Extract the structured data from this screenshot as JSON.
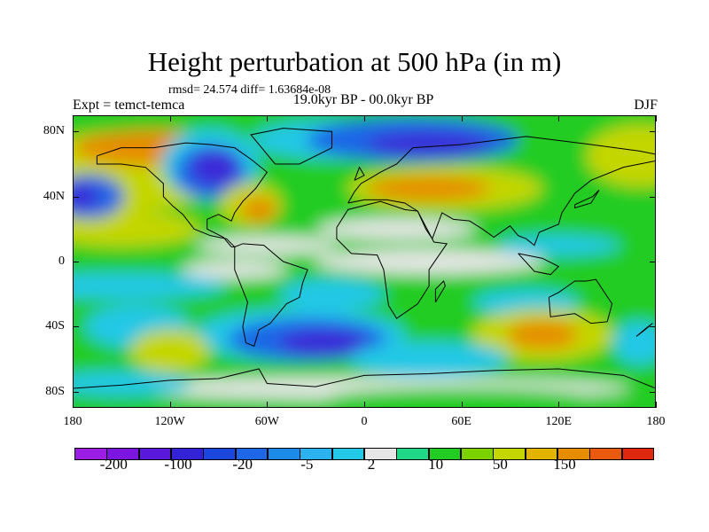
{
  "title": "Height perturbation at 500 hPa (in m)",
  "stats": "rmsd= 24.574  diff= 1.63684e-08",
  "experiment": "Expt = temct-temca",
  "period": "19.0kyr BP - 00.0kyr BP",
  "season": "DJF",
  "y_axis": {
    "labels": [
      "80N",
      "40N",
      "0",
      "40S",
      "80S"
    ],
    "values": [
      80,
      40,
      0,
      -40,
      -80
    ],
    "range": [
      -90,
      90
    ]
  },
  "x_axis": {
    "labels": [
      "180",
      "120W",
      "60W",
      "0",
      "60E",
      "120E",
      "180"
    ],
    "values": [
      -180,
      -120,
      -60,
      0,
      60,
      120,
      180
    ],
    "range": [
      -180,
      180
    ]
  },
  "colorbar": {
    "labels": [
      "-200",
      "-100",
      "-20",
      "-5",
      "2",
      "10",
      "50",
      "150"
    ],
    "colors": [
      "#9a1ee6",
      "#7a16e0",
      "#5a18dc",
      "#3322d6",
      "#1c46dc",
      "#1e66e6",
      "#1e8ae8",
      "#2cb2ee",
      "#22c8e6",
      "#e6e6e6",
      "#20d888",
      "#22cc22",
      "#7cd200",
      "#c4d600",
      "#e0b400",
      "#e68c00",
      "#e85a10",
      "#e02810"
    ]
  },
  "colors": {
    "strong_negative": "#3a2ad8",
    "negative": "#1e66e6",
    "weak_negative": "#22c8e6",
    "near_zero": "#e6e6e6",
    "weak_positive": "#22cc22",
    "positive": "#c4d600",
    "strong_positive": "#e68c00"
  }
}
